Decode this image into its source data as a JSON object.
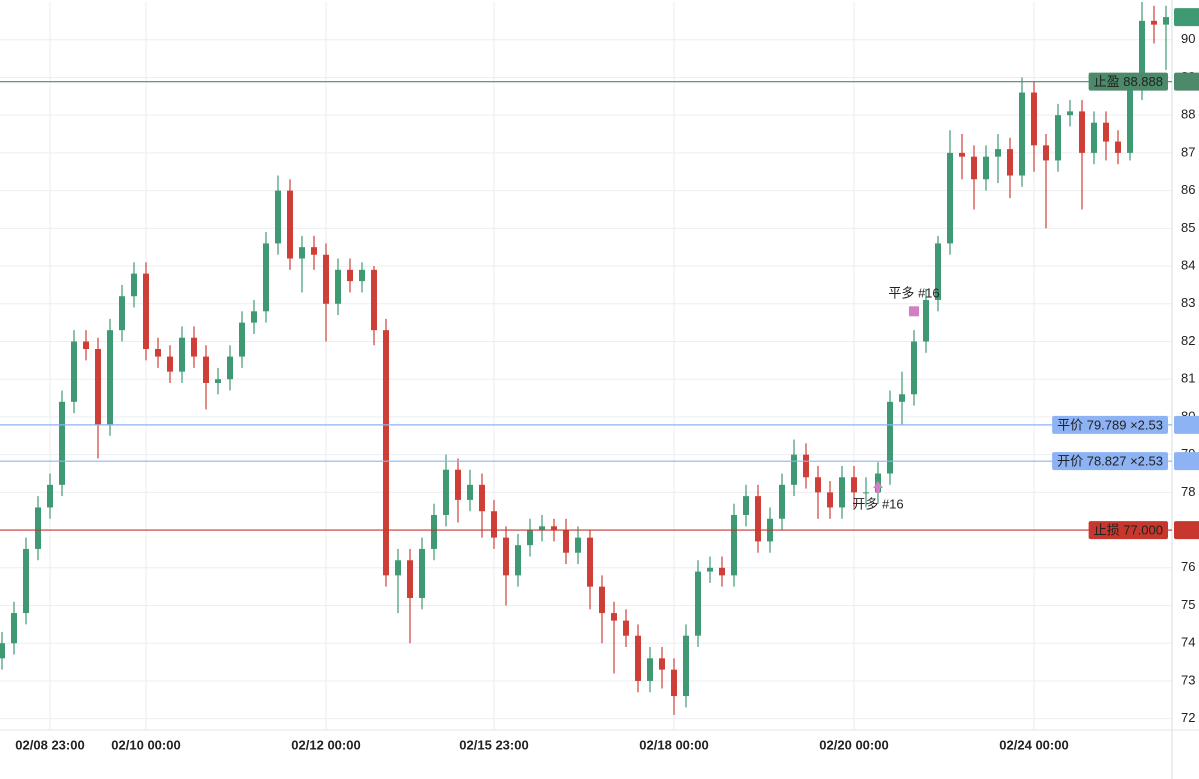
{
  "chart_data": {
    "type": "candlestick",
    "categories": [
      null,
      null,
      null,
      null,
      "02/08 23:00",
      null,
      null,
      null,
      null,
      null,
      null,
      null,
      "02/10 00:00",
      null,
      null,
      null,
      null,
      null,
      null,
      null,
      null,
      null,
      null,
      null,
      null,
      null,
      null,
      "02/12 00:00",
      null,
      null,
      null,
      null,
      null,
      null,
      null,
      null,
      null,
      null,
      null,
      null,
      null,
      "02/15 23:00",
      null,
      null,
      null,
      null,
      null,
      null,
      null,
      null,
      null,
      null,
      null,
      null,
      null,
      null,
      "02/18 00:00",
      null,
      null,
      null,
      null,
      null,
      null,
      null,
      null,
      null,
      null,
      null,
      null,
      null,
      null,
      "02/20 00:00",
      null,
      null,
      null,
      null,
      null,
      null,
      null,
      null,
      null,
      null,
      null,
      null,
      null,
      null,
      "02/24 00:00",
      null,
      null,
      null,
      null,
      null,
      null,
      null,
      null,
      null,
      null,
      null
    ],
    "open": [
      73.6,
      74.0,
      74.8,
      76.5,
      77.6,
      78.2,
      80.4,
      82.0,
      81.8,
      79.8,
      82.3,
      83.2,
      83.8,
      81.8,
      81.6,
      81.2,
      82.1,
      81.6,
      80.9,
      81.0,
      81.6,
      82.5,
      82.8,
      84.6,
      86.0,
      84.2,
      84.5,
      84.3,
      83.0,
      83.9,
      83.6,
      83.9,
      82.3,
      75.8,
      76.2,
      75.2,
      76.5,
      77.4,
      78.6,
      77.8,
      78.2,
      77.5,
      76.8,
      75.8,
      76.6,
      77.0,
      77.1,
      77.0,
      76.4,
      76.8,
      75.5,
      74.8,
      74.6,
      74.2,
      73.0,
      73.6,
      73.3,
      72.6,
      74.2,
      75.9,
      76.0,
      75.8,
      77.4,
      77.9,
      76.7,
      77.3,
      78.2,
      79.0,
      78.4,
      78.0,
      77.6,
      78.4,
      78.0,
      78.0,
      78.5,
      80.4,
      80.6,
      82.0,
      83.1,
      84.6,
      87.0,
      86.9,
      86.3,
      86.9,
      87.1,
      86.4,
      88.6,
      87.2,
      86.8,
      88.0,
      88.1,
      87.0,
      87.8,
      87.3,
      87.0,
      88.7,
      90.5,
      90.4
    ],
    "high": [
      74.3,
      75.1,
      76.8,
      77.9,
      78.5,
      80.7,
      82.3,
      82.3,
      82.1,
      82.6,
      83.5,
      84.1,
      84.1,
      82.1,
      81.9,
      82.4,
      82.4,
      81.9,
      81.3,
      81.9,
      82.8,
      83.1,
      84.9,
      86.4,
      86.3,
      84.8,
      84.8,
      84.6,
      84.2,
      84.2,
      84.1,
      84.0,
      82.6,
      76.5,
      76.5,
      76.8,
      77.7,
      79.0,
      78.9,
      78.6,
      78.5,
      77.8,
      77.1,
      76.9,
      77.3,
      77.4,
      77.3,
      77.3,
      77.1,
      77.0,
      75.8,
      75.1,
      74.9,
      74.5,
      73.9,
      73.9,
      73.6,
      74.5,
      76.2,
      76.3,
      76.3,
      77.7,
      78.2,
      78.2,
      77.6,
      78.5,
      79.4,
      79.3,
      78.7,
      78.3,
      78.7,
      78.7,
      78.4,
      78.8,
      80.7,
      81.2,
      82.3,
      83.4,
      84.8,
      87.6,
      87.5,
      87.2,
      87.2,
      87.5,
      87.4,
      89.0,
      88.9,
      87.5,
      88.3,
      88.4,
      88.4,
      88.1,
      88.1,
      87.6,
      89.0,
      91.0,
      90.9,
      90.9
    ],
    "low": [
      73.3,
      73.7,
      74.5,
      76.2,
      77.3,
      77.9,
      80.1,
      81.5,
      78.9,
      79.5,
      82.0,
      82.9,
      81.5,
      81.3,
      80.9,
      80.9,
      81.3,
      80.2,
      80.6,
      80.7,
      81.3,
      82.2,
      82.5,
      84.3,
      83.9,
      83.3,
      83.9,
      82.0,
      82.7,
      83.3,
      83.3,
      81.9,
      75.5,
      74.8,
      74.0,
      74.9,
      76.2,
      77.1,
      77.2,
      77.5,
      76.8,
      76.5,
      75.0,
      75.5,
      76.3,
      76.7,
      76.7,
      76.1,
      76.1,
      74.9,
      74.0,
      73.2,
      73.9,
      72.7,
      72.7,
      72.8,
      72.1,
      72.3,
      73.9,
      75.6,
      75.5,
      75.5,
      77.1,
      76.4,
      76.4,
      77.0,
      77.9,
      78.1,
      77.3,
      77.3,
      77.3,
      77.6,
      77.6,
      77.7,
      78.2,
      79.8,
      80.3,
      81.7,
      82.8,
      84.3,
      86.3,
      85.5,
      86.0,
      86.2,
      85.8,
      86.1,
      86.5,
      85.0,
      86.5,
      87.7,
      85.5,
      86.7,
      86.8,
      86.7,
      86.8,
      88.4,
      89.9,
      89.2
    ],
    "close": [
      74.0,
      74.8,
      76.5,
      77.6,
      78.2,
      80.4,
      82.0,
      81.8,
      79.8,
      82.3,
      83.2,
      83.8,
      81.8,
      81.6,
      81.2,
      82.1,
      81.6,
      80.9,
      81.0,
      81.6,
      82.5,
      82.8,
      84.6,
      86.0,
      84.2,
      84.5,
      84.3,
      83.0,
      83.9,
      83.6,
      83.9,
      82.3,
      75.8,
      76.2,
      75.2,
      76.5,
      77.4,
      78.6,
      77.8,
      78.2,
      77.5,
      76.8,
      75.8,
      76.6,
      77.0,
      77.1,
      77.0,
      76.4,
      76.8,
      75.5,
      74.8,
      74.6,
      74.2,
      73.0,
      73.6,
      73.3,
      72.6,
      74.2,
      75.9,
      76.0,
      75.8,
      77.4,
      77.9,
      76.7,
      77.3,
      78.2,
      79.0,
      78.4,
      78.0,
      77.6,
      78.4,
      78.0,
      78.0,
      78.5,
      80.4,
      80.6,
      82.0,
      83.1,
      84.6,
      87.0,
      86.9,
      86.3,
      86.9,
      87.1,
      86.4,
      88.6,
      87.2,
      86.8,
      88.0,
      88.1,
      87.0,
      87.8,
      87.3,
      87.0,
      88.7,
      90.5,
      90.4,
      90.6
    ],
    "up_color": "#3f9a73",
    "down_color": "#cf3f37",
    "ylim": [
      71.7,
      91.0
    ],
    "yticks": [
      72,
      73,
      74,
      75,
      76,
      77,
      78,
      79,
      80,
      81,
      82,
      83,
      84,
      85,
      86,
      87,
      88,
      89,
      90
    ],
    "grid": true,
    "price_lines": [
      {
        "label": "止盈 88.888",
        "value": 88.888,
        "color": "#4d8a6b"
      },
      {
        "label": "平价 79.789 ×2.53",
        "value": 79.789,
        "color": "#8db3f4"
      },
      {
        "label": "开价 78.827 ×2.53",
        "value": 78.827,
        "color": "#8db3f4"
      },
      {
        "label": "止损 77.000",
        "value": 77.0,
        "color": "#c8372d"
      }
    ],
    "markers": [
      {
        "text": "开多 #16",
        "index": 73,
        "value": 78.3,
        "shape": "arrow",
        "color": "#d27ec4"
      },
      {
        "text": "平多 #16",
        "index": 76,
        "value": 82.8,
        "shape": "square",
        "color": "#d27ec4"
      }
    ]
  }
}
